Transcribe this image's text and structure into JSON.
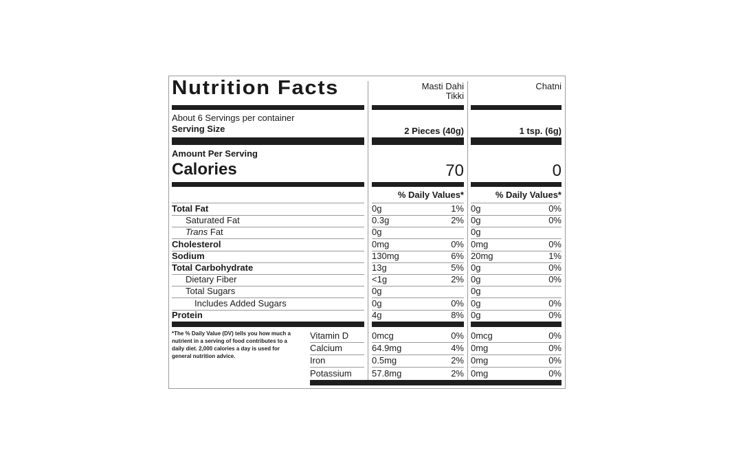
{
  "label": {
    "title": "Nutrition Facts",
    "columns": [
      "Masti Dahi Tikki",
      "Chatni"
    ],
    "servings": "About 6 Servings per container",
    "serving_size_label": "Serving Size",
    "serving_sizes": [
      "2 Pieces (40g)",
      "1 tsp. (6g)"
    ],
    "amount_per_serving": "Amount Per Serving",
    "calories_label": "Calories",
    "calories": [
      70,
      0
    ],
    "daily_values_header": "% Daily Values*",
    "nutrients": [
      {
        "name": "Total Fat",
        "level": 0,
        "bold": true,
        "amounts": [
          "0g",
          "0g"
        ],
        "daily_values": [
          "1%",
          "0%"
        ]
      },
      {
        "name": "Saturated Fat",
        "level": 1,
        "bold": false,
        "amounts": [
          "0.3g",
          "0g"
        ],
        "daily_values": [
          "2%",
          "0%"
        ]
      },
      {
        "name_italic": "Trans",
        "name": "Fat",
        "level": 1,
        "bold": false,
        "amounts": [
          "0g",
          "0g"
        ],
        "daily_values": [
          null,
          null
        ]
      },
      {
        "name": "Cholesterol",
        "level": 0,
        "bold": true,
        "amounts": [
          "0mg",
          "0mg"
        ],
        "daily_values": [
          "0%",
          "0%"
        ]
      },
      {
        "name": "Sodium",
        "level": 0,
        "bold": true,
        "amounts": [
          "130mg",
          "20mg"
        ],
        "daily_values": [
          "6%",
          "1%"
        ]
      },
      {
        "name": "Total Carbohydrate",
        "level": 0,
        "bold": true,
        "amounts": [
          "13g",
          "0g"
        ],
        "daily_values": [
          "5%",
          "0%"
        ]
      },
      {
        "name": "Dietary Fiber",
        "level": 1,
        "bold": false,
        "amounts": [
          "<1g",
          "0g"
        ],
        "daily_values": [
          "2%",
          "0%"
        ]
      },
      {
        "name": "Total Sugars",
        "level": 1,
        "bold": false,
        "amounts": [
          "0g",
          "0g"
        ],
        "daily_values": [
          null,
          null
        ]
      },
      {
        "name": "Includes Added Sugars",
        "level": 2,
        "bold": false,
        "amounts": [
          "0g",
          "0g"
        ],
        "daily_values": [
          "0%",
          "0%"
        ]
      },
      {
        "name": "Protein",
        "level": 0,
        "bold": true,
        "amounts": [
          "4g",
          "0g"
        ],
        "daily_values": [
          "8%",
          "0%"
        ]
      }
    ],
    "footnote": "*The % Daily Value (DV) tells you how much a nutrient in a serving of food contributes to a daily diet. 2,000 calories a day is used for general nutrition advice.",
    "minerals": [
      {
        "name": "Vitamin D",
        "amounts": [
          "0mcg",
          "0mcg"
        ],
        "daily_values": [
          "0%",
          "0%"
        ]
      },
      {
        "name": "Calcium",
        "amounts": [
          "64.9mg",
          "0mg"
        ],
        "daily_values": [
          "4%",
          "0%"
        ]
      },
      {
        "name": "Iron",
        "amounts": [
          "0.5mg",
          "0mg"
        ],
        "daily_values": [
          "2%",
          "0%"
        ]
      },
      {
        "name": "Potassium",
        "amounts": [
          "57.8mg",
          "0mg"
        ],
        "daily_values": [
          "2%",
          "0%"
        ]
      }
    ]
  }
}
